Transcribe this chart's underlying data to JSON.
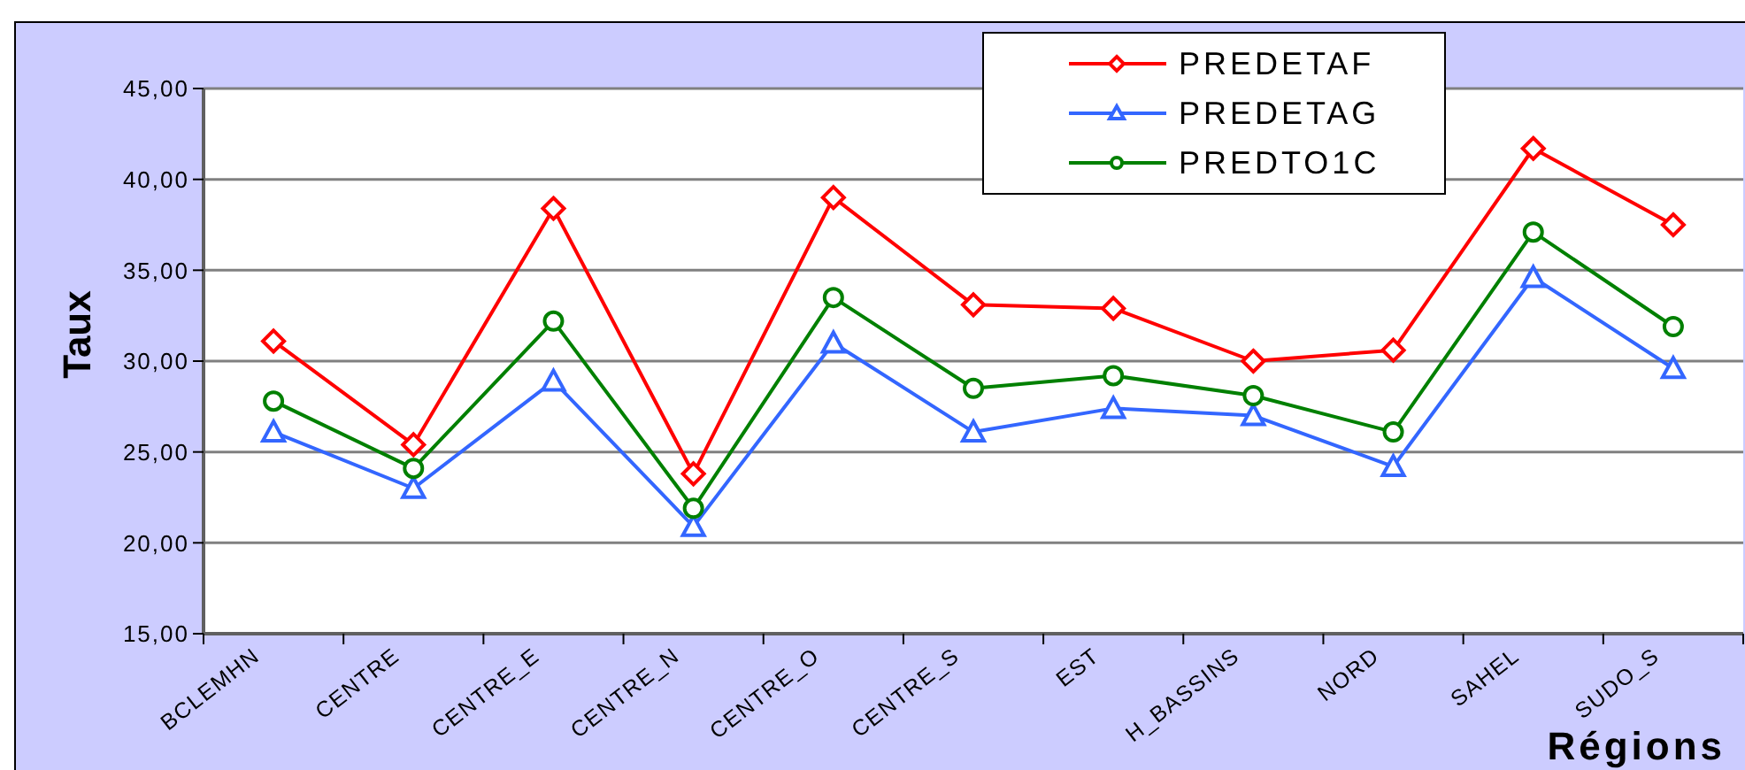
{
  "chart_data": {
    "type": "line",
    "xlabel": "Régions",
    "ylabel": "Taux",
    "categories": [
      "BCLEMHN",
      "CENTRE",
      "CENTRE_E",
      "CENTRE_N",
      "CENTRE_O",
      "CENTRE_S",
      "EST",
      "H_BASSINS",
      "NORD",
      "SAHEL",
      "SUDO_S"
    ],
    "series": [
      {
        "name": "PREDETAF",
        "color": "#ff0000",
        "marker": "diamond",
        "values": [
          31.1,
          25.4,
          38.4,
          23.8,
          39.0,
          33.1,
          32.9,
          30.0,
          30.6,
          41.7,
          37.5
        ]
      },
      {
        "name": "PREDETAG",
        "color": "#3366ff",
        "marker": "triangle",
        "values": [
          26.1,
          23.0,
          28.9,
          20.9,
          31.0,
          26.1,
          27.4,
          27.0,
          24.2,
          34.6,
          29.6
        ]
      },
      {
        "name": "PREDTO1C",
        "color": "#008000",
        "marker": "circle",
        "values": [
          27.8,
          24.1,
          32.2,
          21.9,
          33.5,
          28.5,
          29.2,
          28.1,
          26.1,
          37.1,
          31.9
        ]
      }
    ],
    "ylim": [
      15,
      45
    ],
    "yticks": [
      {
        "value": 15,
        "label": "15,00"
      },
      {
        "value": 20,
        "label": "20,00"
      },
      {
        "value": 25,
        "label": "25,00"
      },
      {
        "value": 30,
        "label": "30,00"
      },
      {
        "value": 35,
        "label": "35,00"
      },
      {
        "value": 40,
        "label": "40,00"
      },
      {
        "value": 45,
        "label": "45,00"
      }
    ],
    "grid": "y",
    "legend": "top right",
    "line_style": "solid"
  }
}
